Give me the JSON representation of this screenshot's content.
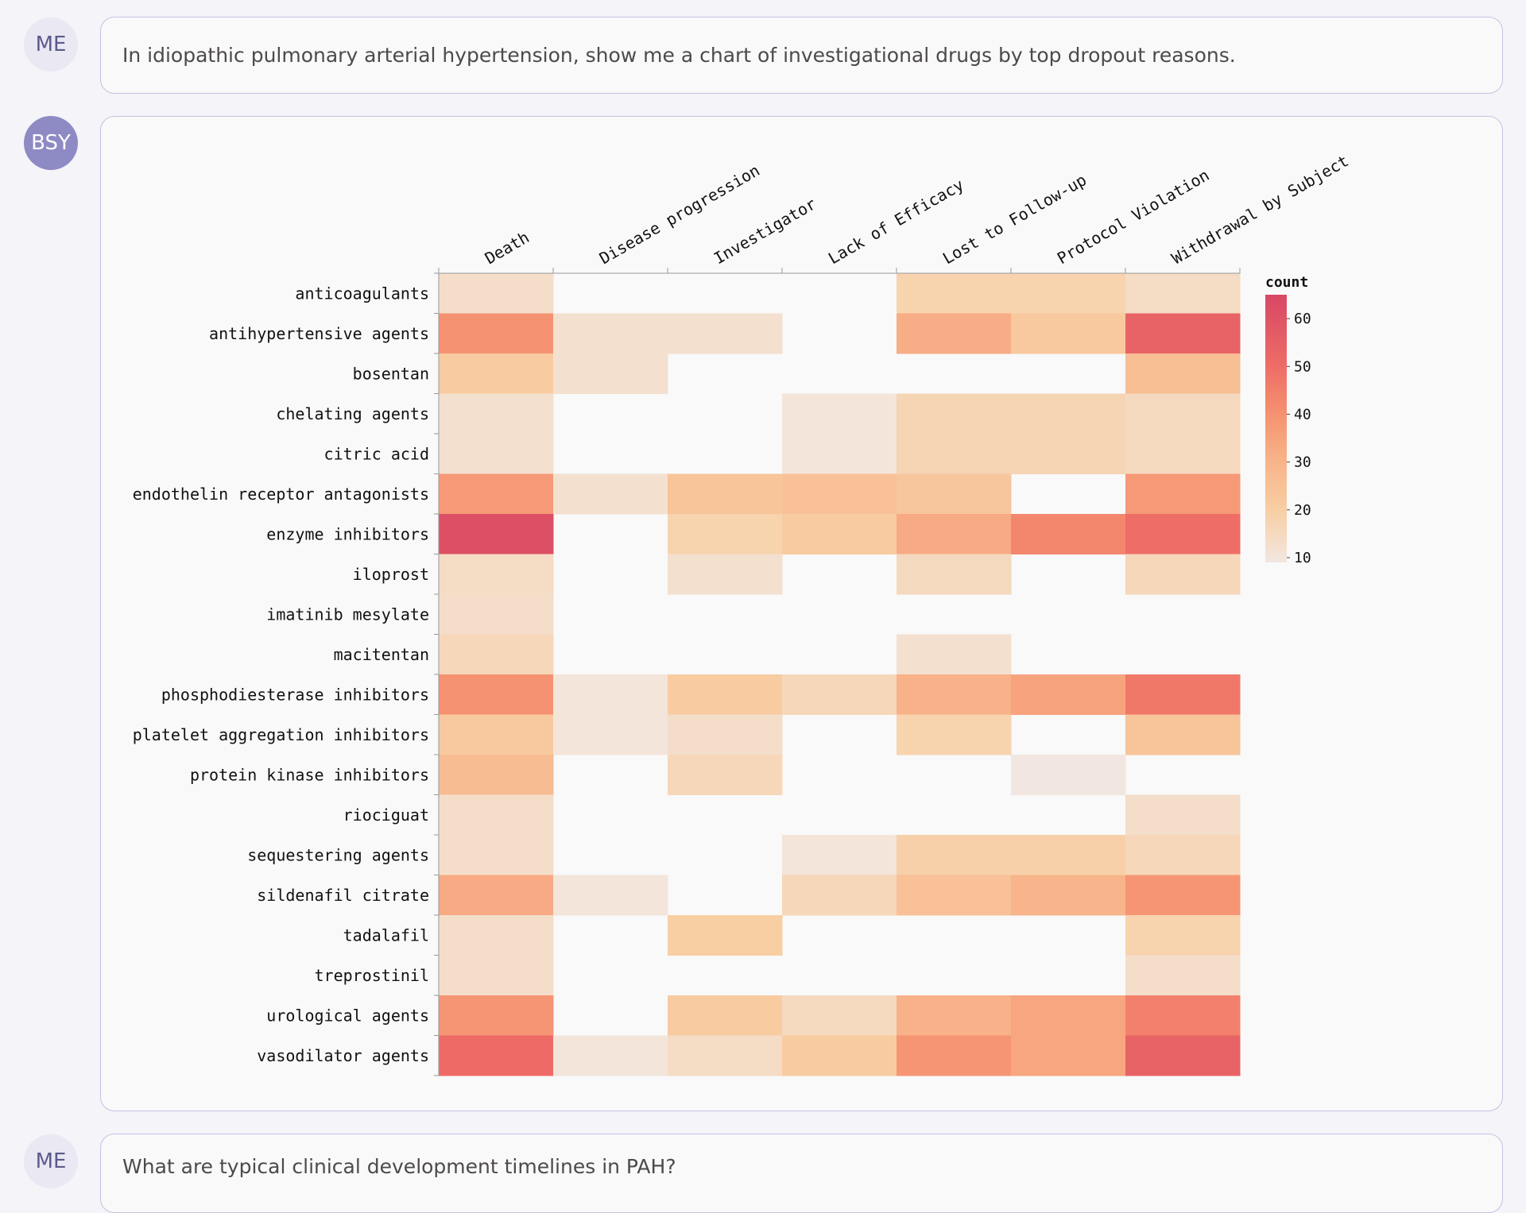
{
  "conversation": {
    "q1": {
      "avatar": "ME",
      "text": "In idiopathic pulmonary arterial hypertension, show me a chart of investigational drugs by top dropout reasons."
    },
    "answer": {
      "avatar": "BSY"
    },
    "q2": {
      "avatar": "ME",
      "text": "What are typical clinical development timelines in PAH?"
    }
  },
  "chart_data": {
    "type": "heatmap",
    "x_categories": [
      "Death",
      "Disease progression",
      "Investigator",
      "Lack of Efficacy",
      "Lost to Follow-up",
      "Protocol Violation",
      "Withdrawal by Subject"
    ],
    "y_categories": [
      "anticoagulants",
      "antihypertensive agents",
      "bosentan",
      "chelating agents",
      "citric acid",
      "endothelin receptor antagonists",
      "enzyme inhibitors",
      "iloprost",
      "imatinib mesylate",
      "macitentan",
      "phosphodiesterase inhibitors",
      "platelet aggregation inhibitors",
      "protein kinase inhibitors",
      "riociguat",
      "sequestering agents",
      "sildenafil citrate",
      "tadalafil",
      "treprostinil",
      "urological agents",
      "vasodilator agents"
    ],
    "values": [
      [
        13,
        null,
        null,
        null,
        18,
        18,
        14
      ],
      [
        40,
        12,
        12,
        null,
        32,
        22,
        54
      ],
      [
        21,
        12,
        null,
        null,
        null,
        null,
        26
      ],
      [
        12,
        null,
        null,
        10,
        17,
        17,
        15
      ],
      [
        12,
        null,
        null,
        10,
        17,
        17,
        15
      ],
      [
        38,
        12,
        24,
        25,
        23,
        null,
        38
      ],
      [
        62,
        null,
        18,
        21,
        33,
        43,
        50
      ],
      [
        14,
        null,
        12,
        null,
        15,
        null,
        16
      ],
      [
        13,
        null,
        null,
        null,
        null,
        null,
        null
      ],
      [
        16,
        null,
        null,
        null,
        12,
        null,
        null
      ],
      [
        40,
        10,
        21,
        16,
        31,
        35,
        47
      ],
      [
        22,
        10,
        13,
        null,
        18,
        null,
        24
      ],
      [
        27,
        null,
        16,
        null,
        null,
        9,
        null
      ],
      [
        13,
        null,
        null,
        null,
        null,
        null,
        13
      ],
      [
        13,
        null,
        null,
        10,
        19,
        19,
        16
      ],
      [
        33,
        10,
        null,
        16,
        25,
        30,
        39
      ],
      [
        13,
        null,
        20,
        null,
        null,
        null,
        18
      ],
      [
        13,
        null,
        null,
        null,
        null,
        null,
        13
      ],
      [
        39,
        null,
        21,
        15,
        31,
        34,
        45
      ],
      [
        51,
        10,
        14,
        21,
        39,
        34,
        54
      ]
    ],
    "colorbar": {
      "title": "count",
      "min": 9,
      "max": 65,
      "ticks": [
        10,
        20,
        30,
        40,
        50,
        60
      ]
    },
    "colors": {
      "low": "#f2e7e0",
      "c20": "#f8cea3",
      "c30": "#f8b48a",
      "c40": "#f59271",
      "c50": "#ee6d66",
      "high": "#d84765"
    }
  }
}
